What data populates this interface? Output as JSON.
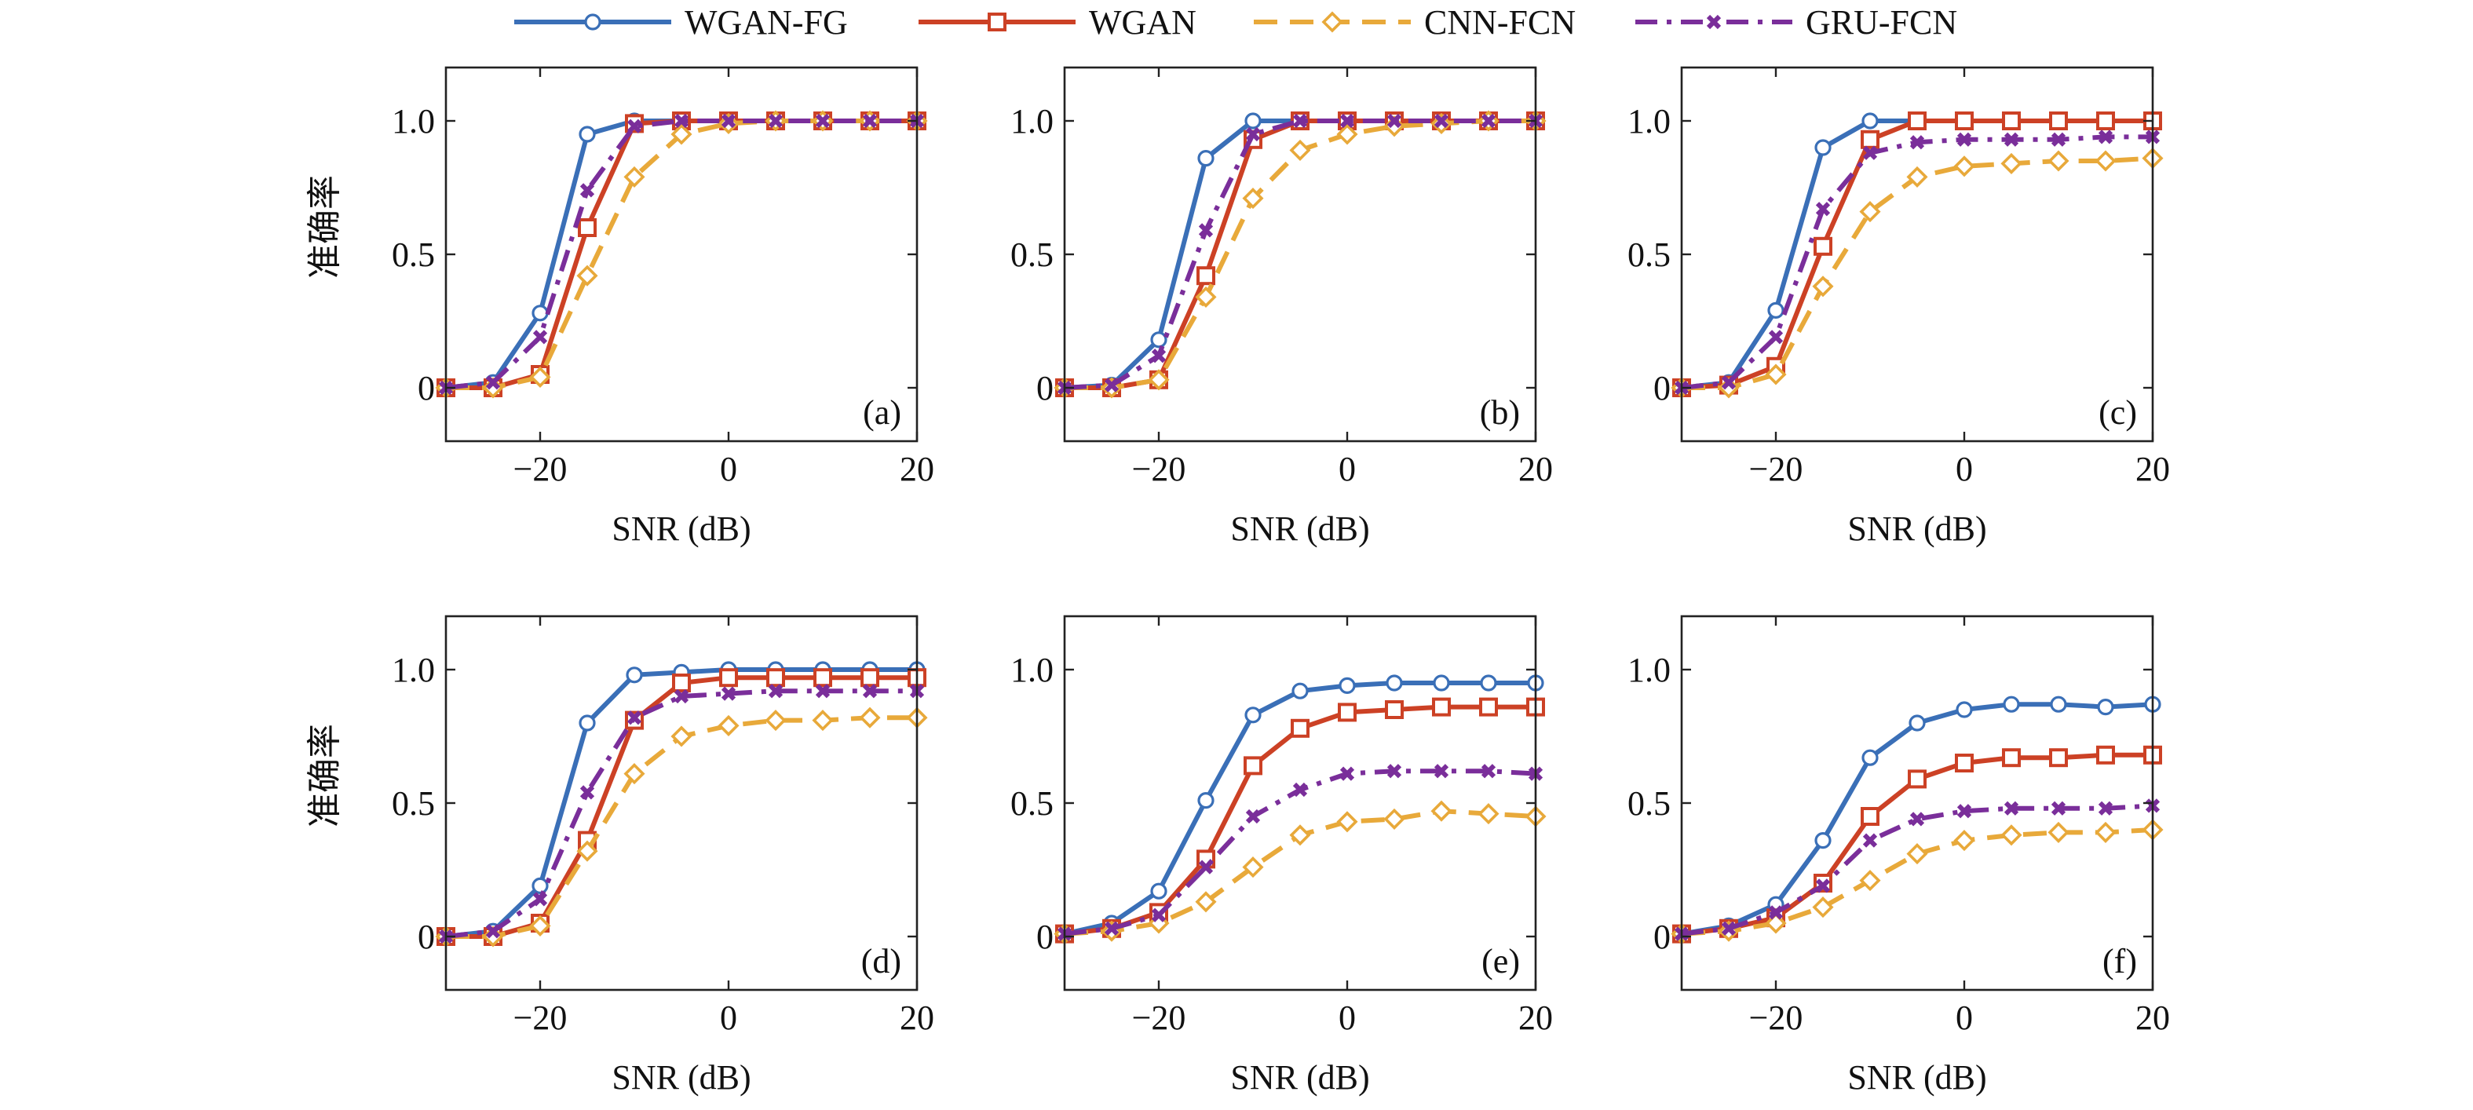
{
  "legend": {
    "placement": "top-center",
    "entries": [
      {
        "label": "WGAN-FG",
        "color": "#3a6fb7",
        "dash": "solid",
        "marker": "circle"
      },
      {
        "label": "WGAN",
        "color": "#cc4125",
        "dash": "solid",
        "marker": "square"
      },
      {
        "label": "CNN-FCN",
        "color": "#e8a93a",
        "dash": "dashed",
        "marker": "diamond"
      },
      {
        "label": "GRU-FCN",
        "color": "#7a2e9a",
        "dash": "dashdot",
        "marker": "x"
      }
    ]
  },
  "chart_data": [
    {
      "type": "line",
      "panel": "(a)",
      "xlabel": "SNR (dB)",
      "ylabel": "准确率",
      "xlim": [
        -30,
        20
      ],
      "ylim": [
        -0.2,
        1.2
      ],
      "xticks": [
        -20,
        0,
        20
      ],
      "xtick_labels": [
        "−20",
        "0",
        "20"
      ],
      "yticks": [
        0,
        0.5,
        1.0
      ],
      "ytick_labels": [
        "0",
        "0.5",
        "1.0"
      ],
      "x": [
        -30,
        -25,
        -20,
        -15,
        -10,
        -5,
        0,
        5,
        10,
        15,
        20
      ],
      "series": [
        {
          "name": "WGAN-FG",
          "values": [
            0,
            0.02,
            0.28,
            0.95,
            1.0,
            1.0,
            1.0,
            1.0,
            1.0,
            1.0,
            1.0
          ]
        },
        {
          "name": "WGAN",
          "values": [
            0,
            0,
            0.05,
            0.6,
            0.99,
            1.0,
            1.0,
            1.0,
            1.0,
            1.0,
            1.0
          ]
        },
        {
          "name": "CNN-FCN",
          "values": [
            0,
            0,
            0.04,
            0.42,
            0.79,
            0.95,
            0.99,
            1.0,
            1.0,
            1.0,
            1.0
          ]
        },
        {
          "name": "GRU-FCN",
          "values": [
            0,
            0.02,
            0.19,
            0.74,
            0.98,
            1.0,
            1.0,
            1.0,
            1.0,
            1.0,
            1.0
          ]
        }
      ]
    },
    {
      "type": "line",
      "panel": "(b)",
      "xlabel": "SNR (dB)",
      "ylabel": "",
      "xlim": [
        -30,
        20
      ],
      "ylim": [
        -0.2,
        1.2
      ],
      "xticks": [
        -20,
        0,
        20
      ],
      "xtick_labels": [
        "−20",
        "0",
        "20"
      ],
      "yticks": [
        0,
        0.5,
        1.0
      ],
      "ytick_labels": [
        "0",
        "0.5",
        "1.0"
      ],
      "x": [
        -30,
        -25,
        -20,
        -15,
        -10,
        -5,
        0,
        5,
        10,
        15,
        20
      ],
      "series": [
        {
          "name": "WGAN-FG",
          "values": [
            0,
            0.01,
            0.18,
            0.86,
            1.0,
            1.0,
            1.0,
            1.0,
            1.0,
            1.0,
            1.0
          ]
        },
        {
          "name": "WGAN",
          "values": [
            0,
            0,
            0.03,
            0.42,
            0.93,
            1.0,
            1.0,
            1.0,
            1.0,
            1.0,
            1.0
          ]
        },
        {
          "name": "CNN-FCN",
          "values": [
            0,
            0,
            0.03,
            0.34,
            0.71,
            0.89,
            0.95,
            0.98,
            0.99,
            1.0,
            1.0
          ]
        },
        {
          "name": "GRU-FCN",
          "values": [
            0,
            0.01,
            0.12,
            0.59,
            0.95,
            1.0,
            1.0,
            1.0,
            1.0,
            1.0,
            1.0
          ]
        }
      ]
    },
    {
      "type": "line",
      "panel": "(c)",
      "xlabel": "SNR (dB)",
      "ylabel": "",
      "xlim": [
        -30,
        20
      ],
      "ylim": [
        -0.2,
        1.2
      ],
      "xticks": [
        -20,
        0,
        20
      ],
      "xtick_labels": [
        "−20",
        "0",
        "20"
      ],
      "yticks": [
        0,
        0.5,
        1.0
      ],
      "ytick_labels": [
        "0",
        "0.5",
        "1.0"
      ],
      "x": [
        -30,
        -25,
        -20,
        -15,
        -10,
        -5,
        0,
        5,
        10,
        15,
        20
      ],
      "series": [
        {
          "name": "WGAN-FG",
          "values": [
            0,
            0.02,
            0.29,
            0.9,
            1.0,
            1.0,
            1.0,
            1.0,
            1.0,
            1.0,
            1.0
          ]
        },
        {
          "name": "WGAN",
          "values": [
            0,
            0.01,
            0.08,
            0.53,
            0.93,
            1.0,
            1.0,
            1.0,
            1.0,
            1.0,
            1.0
          ]
        },
        {
          "name": "CNN-FCN",
          "values": [
            0,
            0,
            0.05,
            0.38,
            0.66,
            0.79,
            0.83,
            0.84,
            0.85,
            0.85,
            0.86
          ]
        },
        {
          "name": "GRU-FCN",
          "values": [
            0,
            0.02,
            0.19,
            0.67,
            0.88,
            0.92,
            0.93,
            0.93,
            0.93,
            0.94,
            0.94
          ]
        }
      ]
    },
    {
      "type": "line",
      "panel": "(d)",
      "xlabel": "SNR (dB)",
      "ylabel": "准确率",
      "xlim": [
        -30,
        20
      ],
      "ylim": [
        -0.2,
        1.2
      ],
      "xticks": [
        -20,
        0,
        20
      ],
      "xtick_labels": [
        "−20",
        "0",
        "20"
      ],
      "yticks": [
        0,
        0.5,
        1.0
      ],
      "ytick_labels": [
        "0",
        "0.5",
        "1.0"
      ],
      "x": [
        -30,
        -25,
        -20,
        -15,
        -10,
        -5,
        0,
        5,
        10,
        15,
        20
      ],
      "series": [
        {
          "name": "WGAN-FG",
          "values": [
            0,
            0.02,
            0.19,
            0.8,
            0.98,
            0.99,
            1.0,
            1.0,
            1.0,
            1.0,
            1.0
          ]
        },
        {
          "name": "WGAN",
          "values": [
            0,
            0,
            0.05,
            0.36,
            0.81,
            0.95,
            0.97,
            0.97,
            0.97,
            0.97,
            0.97
          ]
        },
        {
          "name": "CNN-FCN",
          "values": [
            0,
            0,
            0.04,
            0.32,
            0.61,
            0.75,
            0.79,
            0.81,
            0.81,
            0.82,
            0.82
          ]
        },
        {
          "name": "GRU-FCN",
          "values": [
            0,
            0.02,
            0.14,
            0.54,
            0.82,
            0.9,
            0.91,
            0.92,
            0.92,
            0.92,
            0.92
          ]
        }
      ]
    },
    {
      "type": "line",
      "panel": "(e)",
      "xlabel": "SNR (dB)",
      "ylabel": "",
      "xlim": [
        -30,
        20
      ],
      "ylim": [
        -0.2,
        1.2
      ],
      "xticks": [
        -20,
        0,
        20
      ],
      "xtick_labels": [
        "−20",
        "0",
        "20"
      ],
      "yticks": [
        0,
        0.5,
        1.0
      ],
      "ytick_labels": [
        "0",
        "0.5",
        "1.0"
      ],
      "x": [
        -30,
        -25,
        -20,
        -15,
        -10,
        -5,
        0,
        5,
        10,
        15,
        20
      ],
      "series": [
        {
          "name": "WGAN-FG",
          "values": [
            0.01,
            0.05,
            0.17,
            0.51,
            0.83,
            0.92,
            0.94,
            0.95,
            0.95,
            0.95,
            0.95
          ]
        },
        {
          "name": "WGAN",
          "values": [
            0.01,
            0.03,
            0.09,
            0.29,
            0.64,
            0.78,
            0.84,
            0.85,
            0.86,
            0.86,
            0.86
          ]
        },
        {
          "name": "CNN-FCN",
          "values": [
            0.01,
            0.02,
            0.05,
            0.13,
            0.26,
            0.38,
            0.43,
            0.44,
            0.47,
            0.46,
            0.45
          ]
        },
        {
          "name": "GRU-FCN",
          "values": [
            0.01,
            0.03,
            0.08,
            0.26,
            0.45,
            0.55,
            0.61,
            0.62,
            0.62,
            0.62,
            0.61
          ]
        }
      ]
    },
    {
      "type": "line",
      "panel": "(f)",
      "xlabel": "SNR (dB)",
      "ylabel": "",
      "xlim": [
        -30,
        20
      ],
      "ylim": [
        -0.2,
        1.2
      ],
      "xticks": [
        -20,
        0,
        20
      ],
      "xtick_labels": [
        "−20",
        "0",
        "20"
      ],
      "yticks": [
        0,
        0.5,
        1.0
      ],
      "ytick_labels": [
        "0",
        "0.5",
        "1.0"
      ],
      "x": [
        -30,
        -25,
        -20,
        -15,
        -10,
        -5,
        0,
        5,
        10,
        15,
        20
      ],
      "series": [
        {
          "name": "WGAN-FG",
          "values": [
            0.01,
            0.04,
            0.12,
            0.36,
            0.67,
            0.8,
            0.85,
            0.87,
            0.87,
            0.86,
            0.87
          ]
        },
        {
          "name": "WGAN",
          "values": [
            0.01,
            0.03,
            0.07,
            0.2,
            0.45,
            0.59,
            0.65,
            0.67,
            0.67,
            0.68,
            0.68
          ]
        },
        {
          "name": "CNN-FCN",
          "values": [
            0.01,
            0.02,
            0.05,
            0.11,
            0.21,
            0.31,
            0.36,
            0.38,
            0.39,
            0.39,
            0.4
          ]
        },
        {
          "name": "GRU-FCN",
          "values": [
            0.01,
            0.03,
            0.09,
            0.19,
            0.36,
            0.44,
            0.47,
            0.48,
            0.48,
            0.48,
            0.49
          ]
        }
      ]
    }
  ]
}
